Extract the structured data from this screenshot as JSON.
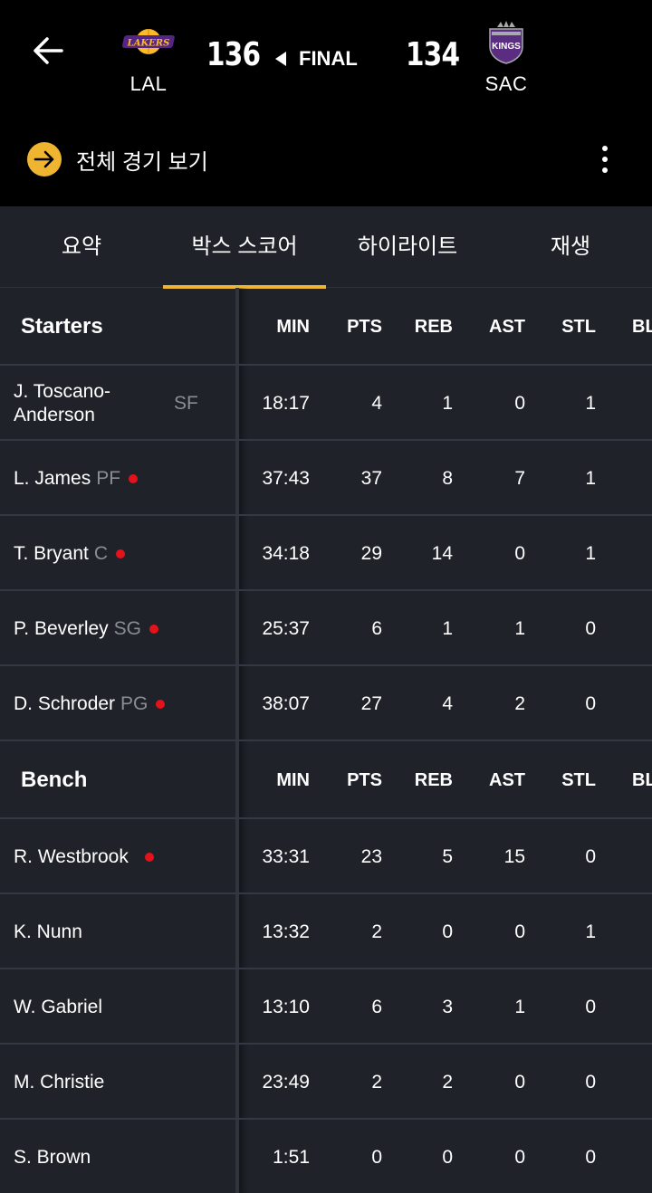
{
  "header": {
    "home": {
      "abbr": "LAL",
      "score": "136",
      "logo_text": "LAKERS",
      "logo_color": "#552583",
      "logo_accent": "#fdb927"
    },
    "away": {
      "abbr": "SAC",
      "score": "134",
      "logo_text": "KINGS",
      "logo_color": "#5a2d81"
    },
    "status": "FINAL",
    "watch_label": "전체 경기 보기",
    "accent": "#f0b530"
  },
  "tabs": [
    {
      "label": "요약",
      "active": false
    },
    {
      "label": "박스 스코어",
      "active": true
    },
    {
      "label": "하이라이트",
      "active": false
    },
    {
      "label": "재생",
      "active": false
    }
  ],
  "columns": [
    "MIN",
    "PTS",
    "REB",
    "AST",
    "STL",
    "BL"
  ],
  "starters": {
    "title": "Starters",
    "players": [
      {
        "name": "J. Toscano-Anderson",
        "name_line1": "J. Toscano-",
        "name_line2": "Anderson",
        "pos": "SF",
        "dot": false,
        "min": "18:17",
        "pts": "4",
        "reb": "1",
        "ast": "0",
        "stl": "1"
      },
      {
        "name": "L. James",
        "pos": "PF",
        "dot": true,
        "min": "37:43",
        "pts": "37",
        "reb": "8",
        "ast": "7",
        "stl": "1"
      },
      {
        "name": "T. Bryant",
        "pos": "C",
        "dot": true,
        "min": "34:18",
        "pts": "29",
        "reb": "14",
        "ast": "0",
        "stl": "1"
      },
      {
        "name": "P. Beverley",
        "pos": "SG",
        "dot": true,
        "min": "25:37",
        "pts": "6",
        "reb": "1",
        "ast": "1",
        "stl": "0"
      },
      {
        "name": "D. Schroder",
        "pos": "PG",
        "dot": true,
        "min": "38:07",
        "pts": "27",
        "reb": "4",
        "ast": "2",
        "stl": "0"
      }
    ]
  },
  "bench": {
    "title": "Bench",
    "players": [
      {
        "name": "R. Westbrook",
        "pos": "",
        "dot": true,
        "min": "33:31",
        "pts": "23",
        "reb": "5",
        "ast": "15",
        "stl": "0"
      },
      {
        "name": "K. Nunn",
        "pos": "",
        "dot": false,
        "min": "13:32",
        "pts": "2",
        "reb": "0",
        "ast": "0",
        "stl": "1"
      },
      {
        "name": "W. Gabriel",
        "pos": "",
        "dot": false,
        "min": "13:10",
        "pts": "6",
        "reb": "3",
        "ast": "1",
        "stl": "0"
      },
      {
        "name": "M. Christie",
        "pos": "",
        "dot": false,
        "min": "23:49",
        "pts": "2",
        "reb": "2",
        "ast": "0",
        "stl": "0"
      },
      {
        "name": "S. Brown",
        "pos": "",
        "dot": false,
        "min": "1:51",
        "pts": "0",
        "reb": "0",
        "ast": "0",
        "stl": "0"
      }
    ]
  },
  "icons": {
    "back": "arrow-left-icon",
    "watch": "arrow-right-icon",
    "more": "kebab-menu-icon",
    "starter_marker": "red-dot-icon"
  },
  "colors": {
    "dot": "#e3121b",
    "background": "#1f2229",
    "header": "#000000"
  }
}
